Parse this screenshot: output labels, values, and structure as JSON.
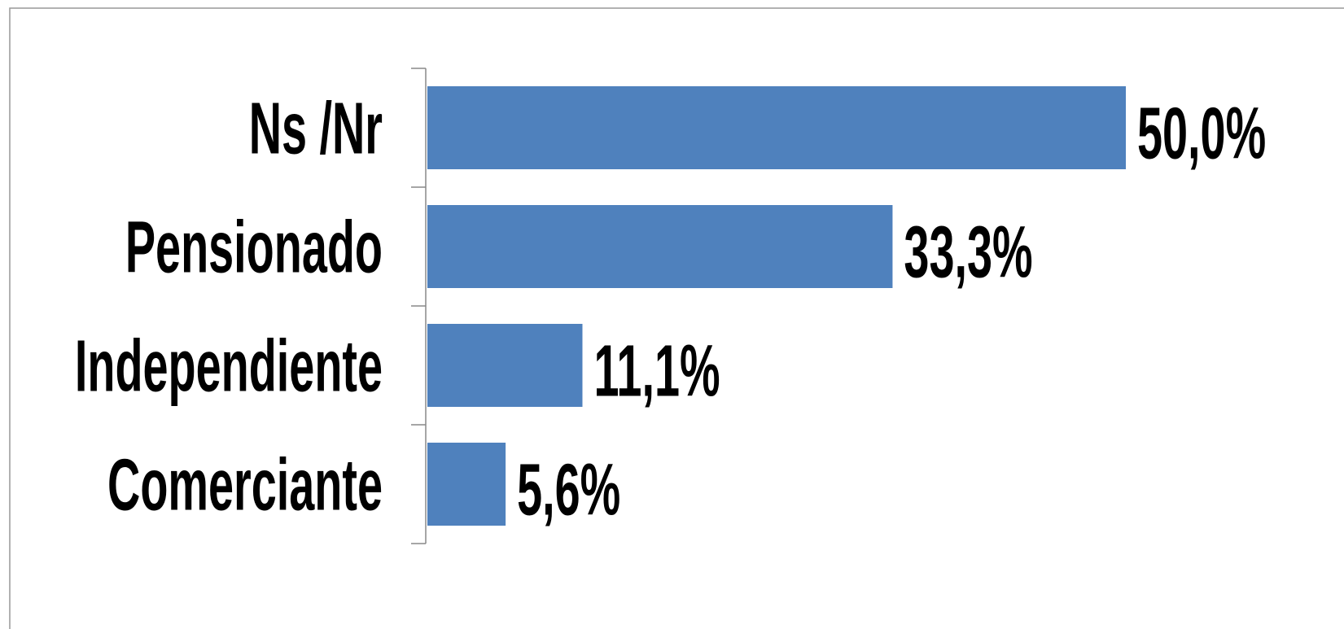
{
  "chart_data": {
    "type": "bar",
    "orientation": "horizontal",
    "categories": [
      "Ns /Nr",
      "Pensionado",
      "Independiente",
      "Comerciante"
    ],
    "values": [
      50.0,
      33.3,
      11.1,
      5.6
    ],
    "value_labels": [
      "50,0%",
      "33,3%",
      "11,1%",
      "5,6%"
    ],
    "color": "#4f81bd"
  }
}
